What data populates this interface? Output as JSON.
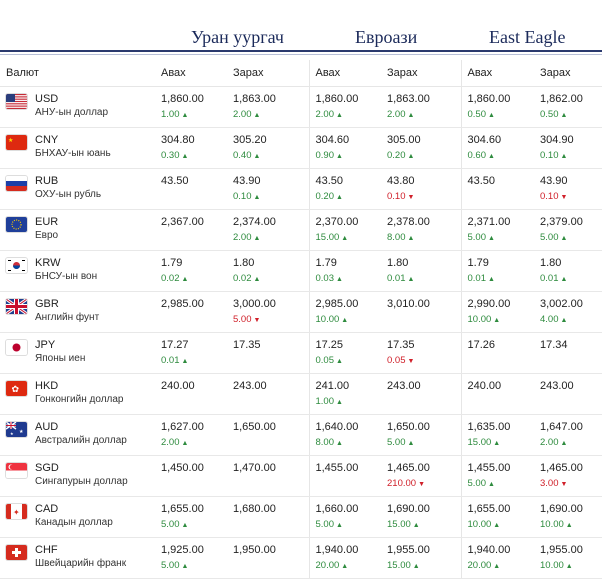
{
  "banks": [
    "Уран уургач",
    "Евроази",
    "East Eagle"
  ],
  "headers": {
    "currency": "Валют",
    "buy": "Авах",
    "sell": "Зарах"
  },
  "rows": [
    {
      "code": "USD",
      "name": "АНУ-ын доллар",
      "flag": "us-flag",
      "c": [
        {
          "v": "1,860.00",
          "d": "1.00",
          "t": "up"
        },
        {
          "v": "1,863.00",
          "d": "2.00",
          "t": "up"
        },
        {
          "v": "1,860.00",
          "d": "2.00",
          "t": "up"
        },
        {
          "v": "1,863.00",
          "d": "2.00",
          "t": "up"
        },
        {
          "v": "1,860.00",
          "d": "0.50",
          "t": "up"
        },
        {
          "v": "1,862.00",
          "d": "0.50",
          "t": "up"
        }
      ]
    },
    {
      "code": "CNY",
      "name": "БНХАУ-ын юань",
      "flag": "cn-flag",
      "c": [
        {
          "v": "304.80",
          "d": "0.30",
          "t": "up"
        },
        {
          "v": "305.20",
          "d": "0.40",
          "t": "up"
        },
        {
          "v": "304.60",
          "d": "0.90",
          "t": "up"
        },
        {
          "v": "305.00",
          "d": "0.20",
          "t": "up"
        },
        {
          "v": "304.60",
          "d": "0.60",
          "t": "up"
        },
        {
          "v": "304.90",
          "d": "0.10",
          "t": "up"
        }
      ]
    },
    {
      "code": "RUB",
      "name": "ОХУ-ын рубль",
      "flag": "ru-flag",
      "c": [
        {
          "v": "43.50",
          "d": "",
          "t": ""
        },
        {
          "v": "43.90",
          "d": "0.10",
          "t": "up"
        },
        {
          "v": "43.50",
          "d": "0.20",
          "t": "up"
        },
        {
          "v": "43.80",
          "d": "0.10",
          "t": "dn"
        },
        {
          "v": "43.50",
          "d": "",
          "t": ""
        },
        {
          "v": "43.90",
          "d": "0.10",
          "t": "dn"
        }
      ]
    },
    {
      "code": "EUR",
      "name": "Евро",
      "flag": "eu-flag",
      "c": [
        {
          "v": "2,367.00",
          "d": "",
          "t": ""
        },
        {
          "v": "2,374.00",
          "d": "2.00",
          "t": "up"
        },
        {
          "v": "2,370.00",
          "d": "15.00",
          "t": "up"
        },
        {
          "v": "2,378.00",
          "d": "8.00",
          "t": "up"
        },
        {
          "v": "2,371.00",
          "d": "5.00",
          "t": "up"
        },
        {
          "v": "2,379.00",
          "d": "5.00",
          "t": "up"
        }
      ]
    },
    {
      "code": "KRW",
      "name": "БНСУ-ын вон",
      "flag": "kr-flag",
      "c": [
        {
          "v": "1.79",
          "d": "0.02",
          "t": "up"
        },
        {
          "v": "1.80",
          "d": "0.02",
          "t": "up"
        },
        {
          "v": "1.79",
          "d": "0.03",
          "t": "up"
        },
        {
          "v": "1.80",
          "d": "0.01",
          "t": "up"
        },
        {
          "v": "1.79",
          "d": "0.01",
          "t": "up"
        },
        {
          "v": "1.80",
          "d": "0.01",
          "t": "up"
        }
      ]
    },
    {
      "code": "GBR",
      "name": "Английн фунт",
      "flag": "gb-flag",
      "c": [
        {
          "v": "2,985.00",
          "d": "",
          "t": ""
        },
        {
          "v": "3,000.00",
          "d": "5.00",
          "t": "dn"
        },
        {
          "v": "2,985.00",
          "d": "10.00",
          "t": "up"
        },
        {
          "v": "3,010.00",
          "d": "",
          "t": ""
        },
        {
          "v": "2,990.00",
          "d": "10.00",
          "t": "up"
        },
        {
          "v": "3,002.00",
          "d": "4.00",
          "t": "up"
        }
      ]
    },
    {
      "code": "JPY",
      "name": "Японы иен",
      "flag": "jp-flag",
      "c": [
        {
          "v": "17.27",
          "d": "0.01",
          "t": "up"
        },
        {
          "v": "17.35",
          "d": "",
          "t": ""
        },
        {
          "v": "17.25",
          "d": "0.05",
          "t": "up"
        },
        {
          "v": "17.35",
          "d": "0.05",
          "t": "dn"
        },
        {
          "v": "17.26",
          "d": "",
          "t": ""
        },
        {
          "v": "17.34",
          "d": "",
          "t": ""
        }
      ]
    },
    {
      "code": "HKD",
      "name": "Гонконгийн доллар",
      "flag": "hk-flag",
      "c": [
        {
          "v": "240.00",
          "d": "",
          "t": ""
        },
        {
          "v": "243.00",
          "d": "",
          "t": ""
        },
        {
          "v": "241.00",
          "d": "1.00",
          "t": "up"
        },
        {
          "v": "243.00",
          "d": "",
          "t": ""
        },
        {
          "v": "240.00",
          "d": "",
          "t": ""
        },
        {
          "v": "243.00",
          "d": "",
          "t": ""
        }
      ]
    },
    {
      "code": "AUD",
      "name": "Австралийн доллар",
      "flag": "au-flag",
      "c": [
        {
          "v": "1,627.00",
          "d": "2.00",
          "t": "up"
        },
        {
          "v": "1,650.00",
          "d": "",
          "t": ""
        },
        {
          "v": "1,640.00",
          "d": "8.00",
          "t": "up"
        },
        {
          "v": "1,650.00",
          "d": "5.00",
          "t": "up"
        },
        {
          "v": "1,635.00",
          "d": "15.00",
          "t": "up"
        },
        {
          "v": "1,647.00",
          "d": "2.00",
          "t": "up"
        }
      ]
    },
    {
      "code": "SGD",
      "name": "Сингапурын доллар",
      "flag": "sg-flag",
      "c": [
        {
          "v": "1,450.00",
          "d": "",
          "t": ""
        },
        {
          "v": "1,470.00",
          "d": "",
          "t": ""
        },
        {
          "v": "1,455.00",
          "d": "",
          "t": ""
        },
        {
          "v": "1,465.00",
          "d": "210.00",
          "t": "dn"
        },
        {
          "v": "1,455.00",
          "d": "5.00",
          "t": "up"
        },
        {
          "v": "1,465.00",
          "d": "3.00",
          "t": "dn"
        }
      ]
    },
    {
      "code": "CAD",
      "name": "Канадын доллар",
      "flag": "ca-flag",
      "c": [
        {
          "v": "1,655.00",
          "d": "5.00",
          "t": "up"
        },
        {
          "v": "1,680.00",
          "d": "",
          "t": ""
        },
        {
          "v": "1,660.00",
          "d": "5.00",
          "t": "up"
        },
        {
          "v": "1,690.00",
          "d": "15.00",
          "t": "up"
        },
        {
          "v": "1,655.00",
          "d": "10.00",
          "t": "up"
        },
        {
          "v": "1,690.00",
          "d": "10.00",
          "t": "up"
        }
      ]
    },
    {
      "code": "CHF",
      "name": "Швейцарийн франк",
      "flag": "ch-flag",
      "c": [
        {
          "v": "1,925.00",
          "d": "5.00",
          "t": "up"
        },
        {
          "v": "1,950.00",
          "d": "",
          "t": ""
        },
        {
          "v": "1,940.00",
          "d": "20.00",
          "t": "up"
        },
        {
          "v": "1,955.00",
          "d": "15.00",
          "t": "up"
        },
        {
          "v": "1,940.00",
          "d": "20.00",
          "t": "up"
        },
        {
          "v": "1,955.00",
          "d": "10.00",
          "t": "up"
        }
      ]
    }
  ],
  "colors": {
    "up": "#2e8b3e",
    "down": "#d0202a",
    "header_rule": "#2b3a6e"
  }
}
